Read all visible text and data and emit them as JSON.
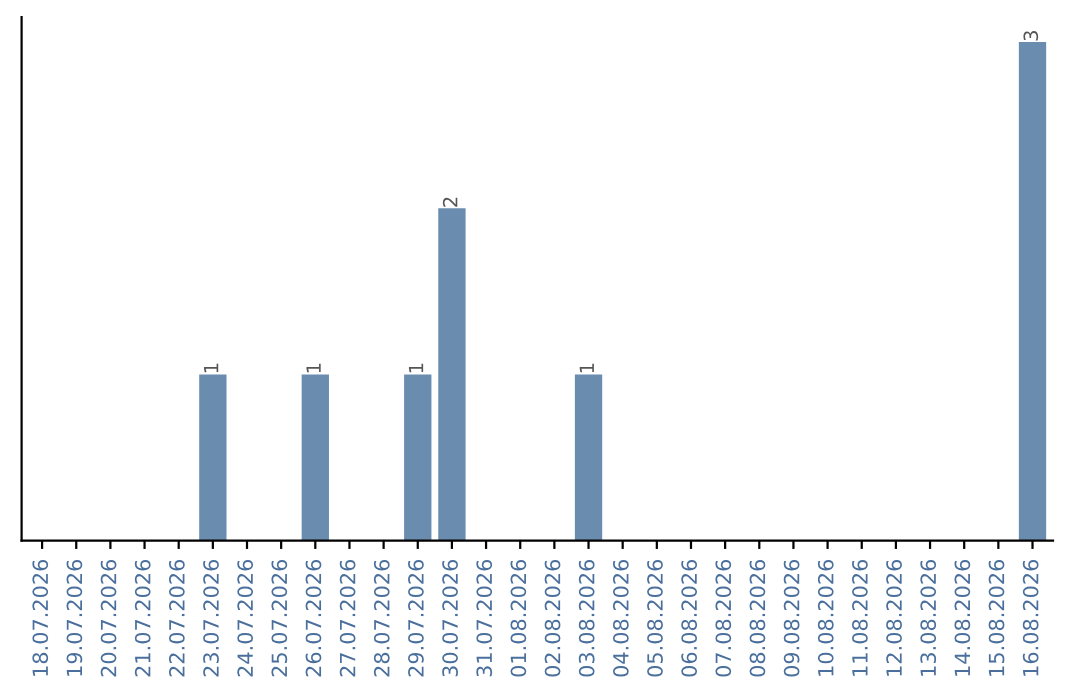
{
  "chart_data": {
    "type": "bar",
    "categories": [
      "18.07.2026",
      "19.07.2026",
      "20.07.2026",
      "21.07.2026",
      "22.07.2026",
      "23.07.2026",
      "24.07.2026",
      "25.07.2026",
      "26.07.2026",
      "27.07.2026",
      "28.07.2026",
      "29.07.2026",
      "30.07.2026",
      "31.07.2026",
      "01.08.2026",
      "02.08.2026",
      "03.08.2026",
      "04.08.2026",
      "05.08.2026",
      "06.08.2026",
      "07.08.2026",
      "08.08.2026",
      "09.08.2026",
      "10.08.2026",
      "11.08.2026",
      "12.08.2026",
      "13.08.2026",
      "14.08.2026",
      "15.08.2026",
      "16.08.2026"
    ],
    "values": [
      0,
      0,
      0,
      0,
      0,
      1,
      0,
      0,
      1,
      0,
      0,
      1,
      2,
      0,
      0,
      0,
      1,
      0,
      0,
      0,
      0,
      0,
      0,
      0,
      0,
      0,
      0,
      0,
      0,
      3
    ],
    "value_labels": [
      null,
      null,
      null,
      null,
      null,
      "1",
      null,
      null,
      "1",
      null,
      null,
      "1",
      "2",
      null,
      null,
      null,
      "1",
      null,
      null,
      null,
      null,
      null,
      null,
      null,
      null,
      null,
      null,
      null,
      null,
      "3"
    ],
    "color": "#6a8caf",
    "tick_labels": "x",
    "grid": false,
    "legend": false
  }
}
